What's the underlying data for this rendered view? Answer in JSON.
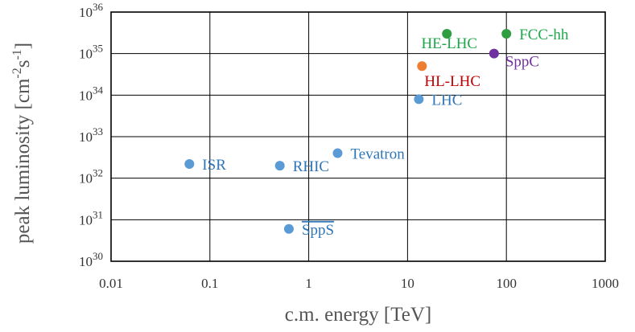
{
  "chart_data": {
    "type": "scatter",
    "x_scale": "log",
    "y_scale": "log",
    "xlim": [
      0.01,
      1000
    ],
    "ylim": [
      1e+30,
      1e+36
    ],
    "grid": true,
    "xlabel": "c.m. energy [TeV]",
    "ylabel_main": "peak luminosity [cm",
    "ylabel_exp1": "-2",
    "ylabel_mid": "s",
    "ylabel_exp2": "-1",
    "ylabel_end": "]",
    "x_ticks": [
      {
        "value": 0.01,
        "label": "0.01"
      },
      {
        "value": 0.1,
        "label": "0.1"
      },
      {
        "value": 1,
        "label": "1"
      },
      {
        "value": 10,
        "label": "10"
      },
      {
        "value": 100,
        "label": "100"
      },
      {
        "value": 1000,
        "label": "1000"
      }
    ],
    "y_ticks": [
      {
        "value": 1e+30,
        "base": "10",
        "exp": "30"
      },
      {
        "value": 1e+31,
        "base": "10",
        "exp": "31"
      },
      {
        "value": 1e+32,
        "base": "10",
        "exp": "32"
      },
      {
        "value": 1e+33,
        "base": "10",
        "exp": "33"
      },
      {
        "value": 1e+34,
        "base": "10",
        "exp": "34"
      },
      {
        "value": 1e+35,
        "base": "10",
        "exp": "35"
      },
      {
        "value": 1e+36,
        "base": "10",
        "exp": "36"
      }
    ],
    "points": [
      {
        "label": "ISR",
        "x": 0.062,
        "y": 2.2e+32,
        "color": "#5b9bd5",
        "text_color": "#2e75b6",
        "label_pos": "right"
      },
      {
        "label": "RHIC",
        "x": 0.51,
        "y": 2e+32,
        "color": "#5b9bd5",
        "text_color": "#2e75b6",
        "label_pos": "right"
      },
      {
        "label": "Tevatron",
        "x": 1.96,
        "y": 4e+32,
        "color": "#5b9bd5",
        "text_color": "#2e75b6",
        "label_pos": "right"
      },
      {
        "label": "SppS",
        "x": 0.63,
        "y": 6e+30,
        "color": "#5b9bd5",
        "text_color": "#2e75b6",
        "label_pos": "right",
        "overline": true
      },
      {
        "label": "LHC",
        "x": 13,
        "y": 8e+33,
        "color": "#5b9bd5",
        "text_color": "#2e75b6",
        "label_pos": "right"
      },
      {
        "label": "HL-LHC",
        "x": 14,
        "y": 5e+34,
        "color": "#ed7d31",
        "text_color": "#c00000",
        "label_pos": "below"
      },
      {
        "label": "HE-LHC",
        "x": 25,
        "y": 3e+35,
        "color": "#2e9e41",
        "text_color": "#1ea84a",
        "label_pos": "below-left"
      },
      {
        "label": "FCC-hh",
        "x": 100,
        "y": 3e+35,
        "color": "#2e9e41",
        "text_color": "#1ea84a",
        "label_pos": "right"
      },
      {
        "label": "SppC",
        "x": 75,
        "y": 1e+35,
        "color": "#7030a0",
        "text_color": "#7030a0",
        "label_pos": "below-right"
      }
    ]
  }
}
